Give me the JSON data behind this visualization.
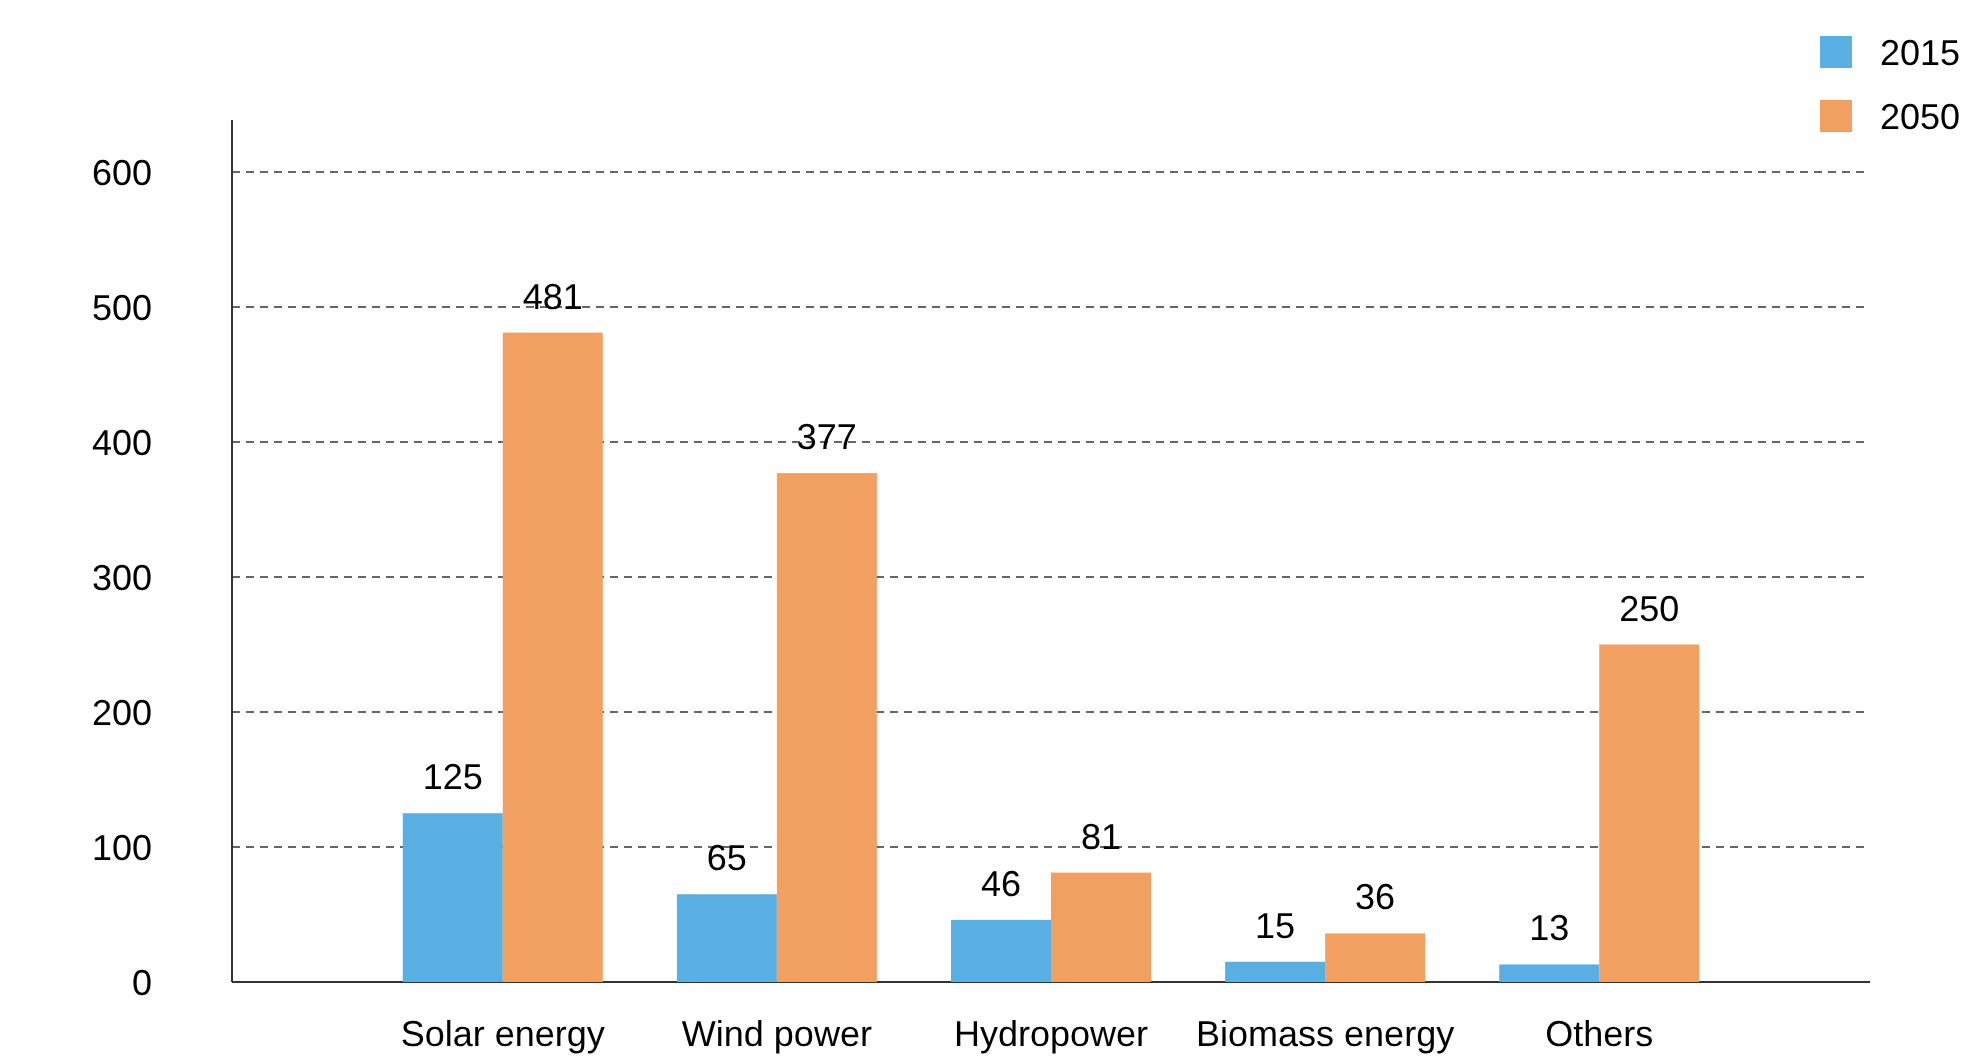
{
  "chart_data": {
    "type": "bar",
    "categories": [
      "Solar energy",
      "Wind power",
      "Hydropower",
      "Biomass energy",
      "Others"
    ],
    "series": [
      {
        "name": "2015",
        "color": "#5aafe2",
        "values": [
          125,
          65,
          46,
          15,
          13
        ]
      },
      {
        "name": "2050",
        "color": "#f2a062",
        "values": [
          481,
          377,
          81,
          36,
          250
        ]
      }
    ],
    "ylim": [
      0,
      600
    ],
    "yticks": [
      0,
      100,
      200,
      300,
      400,
      500,
      600
    ],
    "grid": "y",
    "legend": "top right",
    "data_labels": true
  }
}
